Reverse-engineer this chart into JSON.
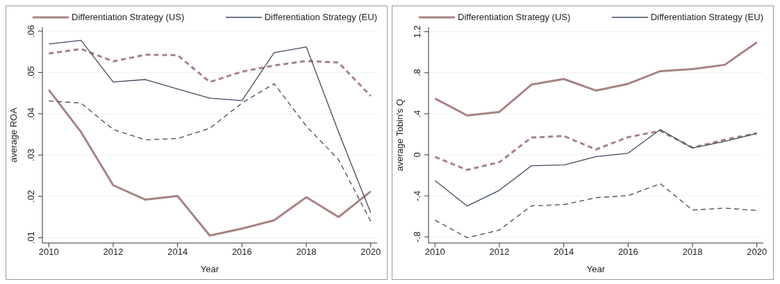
{
  "chart_data": [
    {
      "type": "line",
      "xlabel": "Year",
      "ylabel": "average ROA",
      "x": [
        2010,
        2011,
        2012,
        2013,
        2014,
        2015,
        2016,
        2017,
        2018,
        2019,
        2020
      ],
      "series": [
        {
          "name": "Differentiation Strategy (US)",
          "color": "#a88283",
          "line_style": "solid",
          "values": [
            0.0458,
            0.0356,
            0.0227,
            0.0192,
            0.0201,
            0.0105,
            0.0122,
            0.0142,
            0.0198,
            0.015,
            0.0212
          ]
        },
        {
          "color": "#a88283",
          "line_style": "dashed",
          "values": [
            0.0546,
            0.0557,
            0.0527,
            0.0543,
            0.0542,
            0.0477,
            0.0502,
            0.0517,
            0.0528,
            0.0524,
            0.0443
          ]
        },
        {
          "name": "Differentiation Strategy (EU)",
          "color": "#3e4b5f",
          "line_style": "solid",
          "values": [
            0.0569,
            0.0578,
            0.0477,
            0.0483,
            0.046,
            0.0438,
            0.0432,
            0.0548,
            0.0562,
            0.0356,
            0.016
          ]
        },
        {
          "color": "#3e4b5f",
          "line_style": "dashed",
          "values": [
            0.0431,
            0.0426,
            0.0362,
            0.0337,
            0.034,
            0.0365,
            0.0426,
            0.0473,
            0.037,
            0.0289,
            0.014
          ]
        }
      ],
      "xlim": [
        2009.8,
        2020.2
      ],
      "xticks": [
        2010,
        2012,
        2014,
        2016,
        2018,
        2020
      ],
      "ylim": [
        0.0087,
        0.061
      ],
      "yticks": [
        {
          "value": 0.01,
          "label": ".01"
        },
        {
          "value": 0.02,
          "label": ".02"
        },
        {
          "value": 0.03,
          "label": ".03"
        },
        {
          "value": 0.04,
          "label": ".04"
        },
        {
          "value": 0.05,
          "label": ".05"
        },
        {
          "value": 0.06,
          "label": ".06"
        }
      ],
      "grid": "y",
      "legend": "top",
      "marker": "none"
    },
    {
      "type": "line",
      "xlabel": "Year",
      "ylabel": "average Tobin's Q",
      "x": [
        2010,
        2011,
        2012,
        2013,
        2014,
        2015,
        2016,
        2017,
        2018,
        2019,
        2020
      ],
      "series": [
        {
          "name": "Differentiation Strategy (US)",
          "color": "#a88283",
          "line_style": "solid",
          "values": [
            0.549,
            0.384,
            0.418,
            0.685,
            0.739,
            0.626,
            0.692,
            0.816,
            0.836,
            0.877,
            1.096
          ]
        },
        {
          "color": "#a88283",
          "line_style": "dashed",
          "values": [
            -0.02,
            -0.147,
            -0.072,
            0.169,
            0.183,
            0.052,
            0.172,
            0.233,
            0.07,
            0.147,
            0.21
          ]
        },
        {
          "name": "Differentiation Strategy (EU)",
          "color": "#3e4b5f",
          "line_style": "solid",
          "values": [
            -0.251,
            -0.499,
            -0.346,
            -0.106,
            -0.099,
            -0.018,
            0.016,
            0.246,
            0.066,
            0.131,
            0.208
          ]
        },
        {
          "color": "#3e4b5f",
          "line_style": "dashed",
          "values": [
            -0.637,
            -0.807,
            -0.734,
            -0.497,
            -0.486,
            -0.418,
            -0.398,
            -0.282,
            -0.538,
            -0.52,
            -0.542
          ]
        }
      ],
      "xlim": [
        2009.8,
        2020.2
      ],
      "xticks": [
        2010,
        2012,
        2014,
        2016,
        2018,
        2020
      ],
      "ylim": [
        -0.86,
        1.245
      ],
      "yticks": [
        {
          "value": -0.8,
          "label": "-.8"
        },
        {
          "value": -0.4,
          "label": "-.4"
        },
        0,
        {
          "value": 0.4,
          "label": ".4"
        },
        {
          "value": 0.8,
          "label": ".8"
        },
        1.2
      ],
      "grid": "y",
      "legend": "top",
      "marker": "none"
    }
  ]
}
